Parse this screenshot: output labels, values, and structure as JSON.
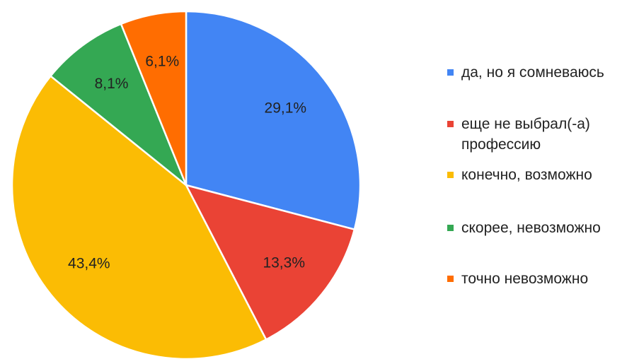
{
  "chart_data": {
    "type": "pie",
    "categories": [
      "да, но я сомневаюсь",
      "еще не выбрал(-а) профессию",
      "конечно, возможно",
      "скорее, невозможно",
      "точно невозможно"
    ],
    "values": [
      29.1,
      13.3,
      43.4,
      8.1,
      6.1
    ],
    "value_labels": [
      "29,1%",
      "13,3%",
      "43,4%",
      "8,1%",
      "6,1%"
    ],
    "colors": [
      "#4285f4",
      "#ea4335",
      "#fbbc04",
      "#34a853",
      "#ff6d01"
    ],
    "legend": "right"
  }
}
